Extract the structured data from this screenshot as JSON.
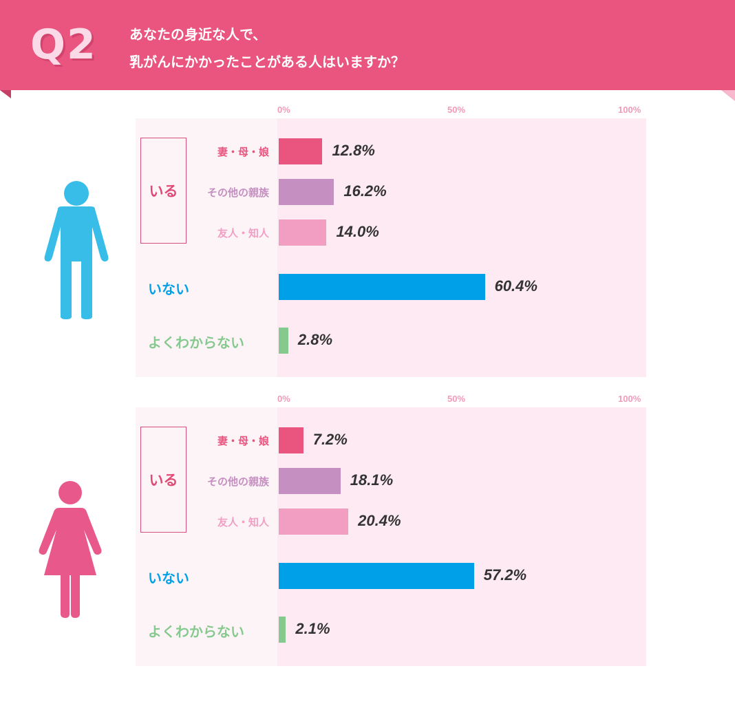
{
  "header": {
    "q_number": "Q2",
    "question_line1": "あなたの身近な人で、",
    "question_line2": "乳がんにかかったことがある人はいますか？"
  },
  "colors": {
    "banner": "#e9557f",
    "wife_mother_daughter": "#e9557f",
    "other_relatives": "#c58fc1",
    "friends": "#f29ec3",
    "none": "#00a0e8",
    "unknown": "#86c98e",
    "male_figure": "#38bde9",
    "female_figure": "#e9588a"
  },
  "chart_data": [
    {
      "type": "bar",
      "orientation": "horizontal",
      "figure": "male-figure-icon",
      "ticks": [
        "0%",
        "50%",
        "100%"
      ],
      "xlim": [
        0,
        100
      ],
      "group_label": "いる",
      "categories": [
        "妻・母・娘",
        "その他の親族",
        "友人・知人",
        "いない",
        "よくわからない"
      ],
      "values": [
        12.8,
        16.2,
        14.0,
        60.4,
        2.8
      ],
      "value_labels": [
        "12.8%",
        "16.2%",
        "14.0%",
        "60.4%",
        "2.8%"
      ]
    },
    {
      "type": "bar",
      "orientation": "horizontal",
      "figure": "female-figure-icon",
      "ticks": [
        "0%",
        "50%",
        "100%"
      ],
      "xlim": [
        0,
        100
      ],
      "group_label": "いる",
      "categories": [
        "妻・母・娘",
        "その他の親族",
        "友人・知人",
        "いない",
        "よくわからない"
      ],
      "values": [
        7.2,
        18.1,
        20.4,
        57.2,
        2.1
      ],
      "value_labels": [
        "7.2%",
        "18.1%",
        "20.4%",
        "57.2%",
        "2.1%"
      ]
    }
  ]
}
